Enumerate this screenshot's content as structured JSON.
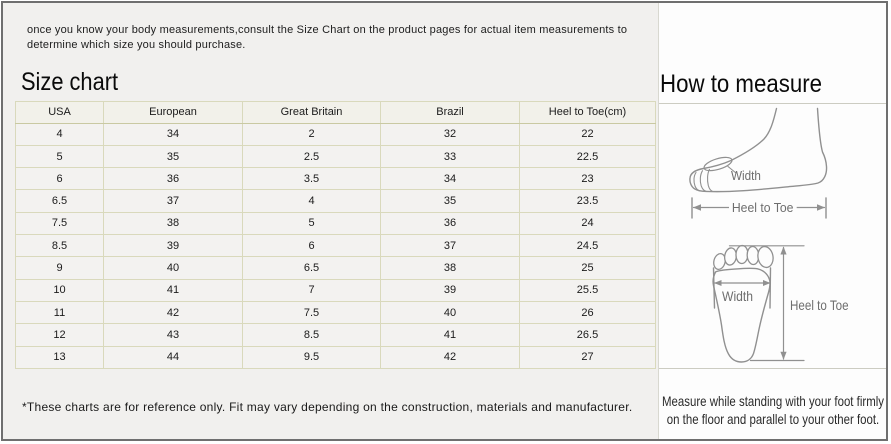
{
  "intro": {
    "line1": "once you know your body measurements,consult the Size Chart on the product pages for actual item measurements to",
    "line2": "determine which size you should purchase."
  },
  "size_chart": {
    "title": "Size chart",
    "note": "*These charts are for reference only. Fit may vary depending on the construction, materials and manufacturer.",
    "table": {
      "columns": [
        "USA",
        "European",
        "Great Britain",
        "Brazil",
        "Heel to Toe(cm)"
      ],
      "rows": [
        [
          "4",
          "34",
          "2",
          "32",
          "22"
        ],
        [
          "5",
          "35",
          "2.5",
          "33",
          "22.5"
        ],
        [
          "6",
          "36",
          "3.5",
          "34",
          "23"
        ],
        [
          "6.5",
          "37",
          "4",
          "35",
          "23.5"
        ],
        [
          "7.5",
          "38",
          "5",
          "36",
          "24"
        ],
        [
          "8.5",
          "39",
          "6",
          "37",
          "24.5"
        ],
        [
          "9",
          "40",
          "6.5",
          "38",
          "25"
        ],
        [
          "10",
          "41",
          "7",
          "39",
          "25.5"
        ],
        [
          "11",
          "42",
          "7.5",
          "40",
          "26"
        ],
        [
          "12",
          "43",
          "8.5",
          "41",
          "26.5"
        ],
        [
          "13",
          "44",
          "9.5",
          "42",
          "27"
        ]
      ]
    }
  },
  "how_to_measure": {
    "title": "How to measure",
    "side_view": {
      "width_label": "Width",
      "heel_to_toe_label": "Heel to Toe"
    },
    "top_view": {
      "width_label": "Width",
      "heel_to_toe_label": "Heel to Toe"
    },
    "caption_line1": "Measure while standing with your foot firmly",
    "caption_line2": "on the floor and parallel to your other foot."
  },
  "colors": {
    "page_background": "#f1f0ee",
    "panel_background": "#fdfdfd",
    "frame_border": "#6f6f6f",
    "table_border": "#d9d9bc",
    "table_cell_background": "#f3f2f0",
    "diagram_stroke": "#909090",
    "diagram_label": "#6e6e6e"
  }
}
